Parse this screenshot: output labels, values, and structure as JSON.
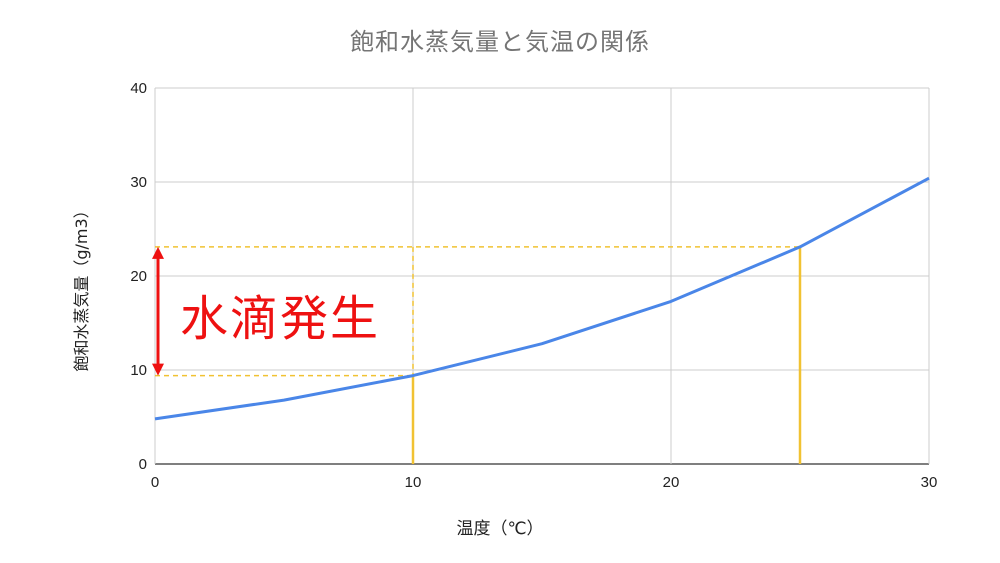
{
  "chart_data": {
    "type": "line",
    "title": "飽和水蒸気量と気温の関係",
    "xlabel": "温度（℃）",
    "ylabel": "飽和水蒸気量（g/m3）",
    "xlim": [
      0,
      30
    ],
    "ylim": [
      0,
      40
    ],
    "x_ticks": [
      0,
      10,
      20,
      30
    ],
    "y_ticks": [
      0,
      10,
      20,
      30,
      40
    ],
    "grid": true,
    "legend": "none",
    "series": [
      {
        "color": "#4a86e8",
        "points": [
          [
            0,
            4.8
          ],
          [
            5,
            6.8
          ],
          [
            10,
            9.4
          ],
          [
            15,
            12.8
          ],
          [
            20,
            17.3
          ],
          [
            25,
            23.1
          ],
          [
            30,
            30.4
          ]
        ]
      }
    ],
    "reference_lines": {
      "color": "#f1c232",
      "points": [
        [
          10,
          9.4
        ],
        [
          25,
          23.1
        ]
      ]
    },
    "annotation": {
      "text": "水滴発生",
      "color": "#ee1111"
    }
  }
}
